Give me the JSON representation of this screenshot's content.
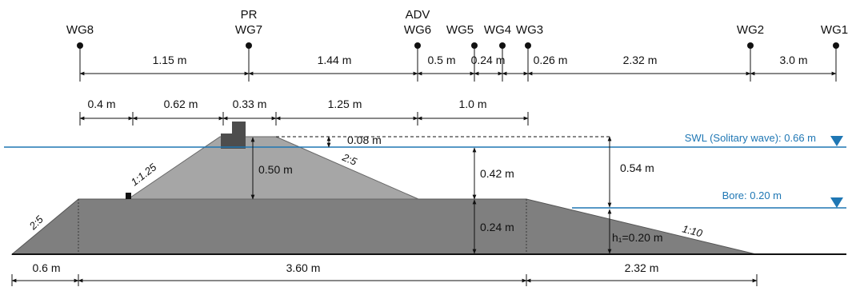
{
  "gauges": {
    "wg8": "WG8",
    "pr": "PR",
    "wg7": "WG7",
    "adv": "ADV",
    "wg6": "WG6",
    "wg5": "WG5",
    "wg4": "WG4",
    "wg3": "WG3",
    "wg2": "WG2",
    "wg1": "WG1"
  },
  "gauge_spacing": {
    "wg8_wg7": "1.15 m",
    "wg7_wg6": "1.44 m",
    "wg6_wg5": "0.5 m",
    "wg5_wg4": "0.24 m",
    "wg4_wg3": "0.26 m",
    "wg3_wg2": "2.32 m",
    "wg2_wg1": "3.0 m"
  },
  "structure_widths": {
    "d1": "0.4 m",
    "d2": "0.62 m",
    "d3": "0.33 m",
    "d4": "1.25 m",
    "d5": "1.0 m"
  },
  "vertical_dims": {
    "freeboard": "0.08 m",
    "upper_height": "0.50 m",
    "swl_to_base": "0.42 m",
    "swl_to_bore": "0.54 m",
    "base_height": "0.24 m",
    "h1": "h₁=0.20 m"
  },
  "slopes": {
    "rear_upper": "1:1.25",
    "front_upper": "2:5",
    "rear_base": "2:5",
    "front_base": "1:10"
  },
  "water_levels": {
    "swl": "SWL (Solitary wave): 0.66 m",
    "bore": "Bore: 0.20 m"
  },
  "base_widths": {
    "left": "0.6 m",
    "middle": "3.60 m",
    "right": "2.32 m"
  },
  "colors": {
    "water_line": "#1f77b4",
    "upper_body": "#a6a6a6",
    "base_body": "#7f7f7f",
    "crest_block": "#4d4d4d"
  }
}
